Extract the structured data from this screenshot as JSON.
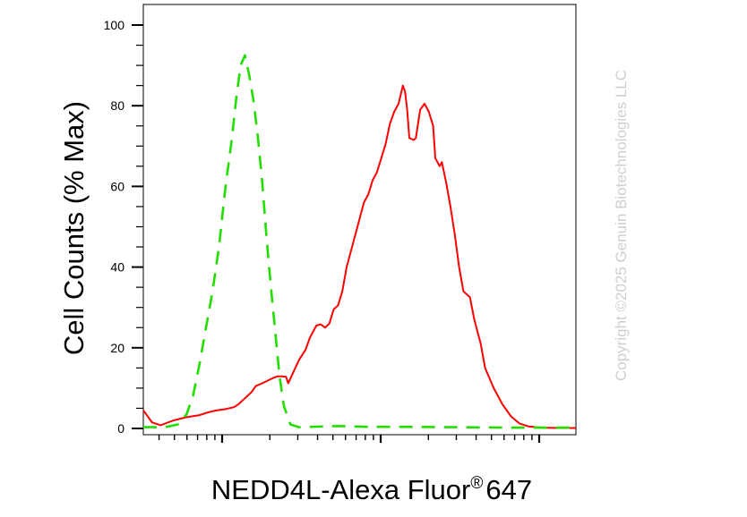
{
  "chart_data": {
    "type": "line",
    "ylabel": "Cell Counts (% Max)",
    "xlabel": {
      "main": "NEDD4L-Alexa Fluor",
      "superscript": "®",
      "suffix": "647"
    },
    "y_ticks": [
      "0",
      "20",
      "40",
      "60",
      "80",
      "100"
    ],
    "ylim": [
      0,
      104
    ],
    "x_scale": "log",
    "x_tick_labels": [],
    "grid": false,
    "series": [
      {
        "color": "#ff0000",
        "style": "solid",
        "points": [
          [
            0.0,
            4.5
          ],
          [
            0.02,
            1.5
          ],
          [
            0.04,
            0.8
          ],
          [
            0.07,
            2.0
          ],
          [
            0.1,
            2.8
          ],
          [
            0.13,
            3.3
          ],
          [
            0.15,
            4.0
          ],
          [
            0.17,
            4.5
          ],
          [
            0.19,
            4.8
          ],
          [
            0.21,
            5.3
          ],
          [
            0.22,
            6.0
          ],
          [
            0.235,
            7.5
          ],
          [
            0.25,
            9.0
          ],
          [
            0.26,
            10.5
          ],
          [
            0.275,
            11.2
          ],
          [
            0.29,
            12.0
          ],
          [
            0.3,
            12.5
          ],
          [
            0.31,
            12.9
          ],
          [
            0.32,
            12.9
          ],
          [
            0.33,
            12.8
          ],
          [
            0.335,
            11.2
          ],
          [
            0.345,
            13.5
          ],
          [
            0.36,
            17.0
          ],
          [
            0.375,
            19.5
          ],
          [
            0.385,
            22.5
          ],
          [
            0.4,
            25.5
          ],
          [
            0.41,
            25.8
          ],
          [
            0.42,
            25.0
          ],
          [
            0.43,
            26.0
          ],
          [
            0.44,
            29.5
          ],
          [
            0.45,
            30.5
          ],
          [
            0.46,
            34.0
          ],
          [
            0.47,
            40.0
          ],
          [
            0.49,
            48.0
          ],
          [
            0.5,
            52.0
          ],
          [
            0.51,
            56.0
          ],
          [
            0.52,
            58.0
          ],
          [
            0.53,
            61.5
          ],
          [
            0.54,
            63.5
          ],
          [
            0.55,
            67.0
          ],
          [
            0.56,
            70.5
          ],
          [
            0.57,
            75.5
          ],
          [
            0.58,
            78.5
          ],
          [
            0.59,
            80.5
          ],
          [
            0.6,
            85.0
          ],
          [
            0.605,
            83.5
          ],
          [
            0.61,
            79.0
          ],
          [
            0.615,
            72.0
          ],
          [
            0.625,
            71.5
          ],
          [
            0.63,
            72.0
          ],
          [
            0.64,
            79.0
          ],
          [
            0.65,
            80.5
          ],
          [
            0.66,
            78.5
          ],
          [
            0.67,
            75.0
          ],
          [
            0.675,
            67.0
          ],
          [
            0.685,
            65.0
          ],
          [
            0.69,
            66.0
          ],
          [
            0.7,
            61.0
          ],
          [
            0.71,
            55.0
          ],
          [
            0.72,
            48.0
          ],
          [
            0.73,
            40.0
          ],
          [
            0.74,
            34.0
          ],
          [
            0.755,
            32.5
          ],
          [
            0.765,
            27.0
          ],
          [
            0.78,
            21.0
          ],
          [
            0.79,
            15.0
          ],
          [
            0.81,
            10.0
          ],
          [
            0.83,
            6.0
          ],
          [
            0.85,
            3.0
          ],
          [
            0.87,
            1.2
          ],
          [
            0.89,
            0.5
          ],
          [
            0.92,
            0.2
          ],
          [
            0.96,
            0.1
          ],
          [
            1.0,
            0.1
          ]
        ]
      },
      {
        "color": "#22dd00",
        "style": "dashed",
        "points": [
          [
            0.0,
            0.3
          ],
          [
            0.05,
            0.3
          ],
          [
            0.08,
            1.0
          ],
          [
            0.1,
            3.5
          ],
          [
            0.115,
            8.0
          ],
          [
            0.13,
            16.0
          ],
          [
            0.145,
            25.0
          ],
          [
            0.16,
            34.0
          ],
          [
            0.175,
            45.0
          ],
          [
            0.19,
            60.0
          ],
          [
            0.205,
            72.0
          ],
          [
            0.215,
            82.0
          ],
          [
            0.225,
            90.0
          ],
          [
            0.235,
            92.5
          ],
          [
            0.245,
            87.5
          ],
          [
            0.255,
            81.0
          ],
          [
            0.265,
            72.0
          ],
          [
            0.275,
            61.0
          ],
          [
            0.285,
            47.0
          ],
          [
            0.295,
            35.0
          ],
          [
            0.305,
            24.0
          ],
          [
            0.315,
            13.0
          ],
          [
            0.325,
            5.5
          ],
          [
            0.34,
            1.0
          ],
          [
            0.36,
            0.3
          ],
          [
            0.45,
            0.6
          ],
          [
            0.52,
            0.4
          ],
          [
            0.6,
            0.4
          ],
          [
            0.72,
            0.3
          ],
          [
            0.86,
            0.2
          ],
          [
            1.0,
            0.2
          ]
        ]
      }
    ]
  },
  "watermark": "Copyright ©2025 Genuin Biotechnologies LLC"
}
